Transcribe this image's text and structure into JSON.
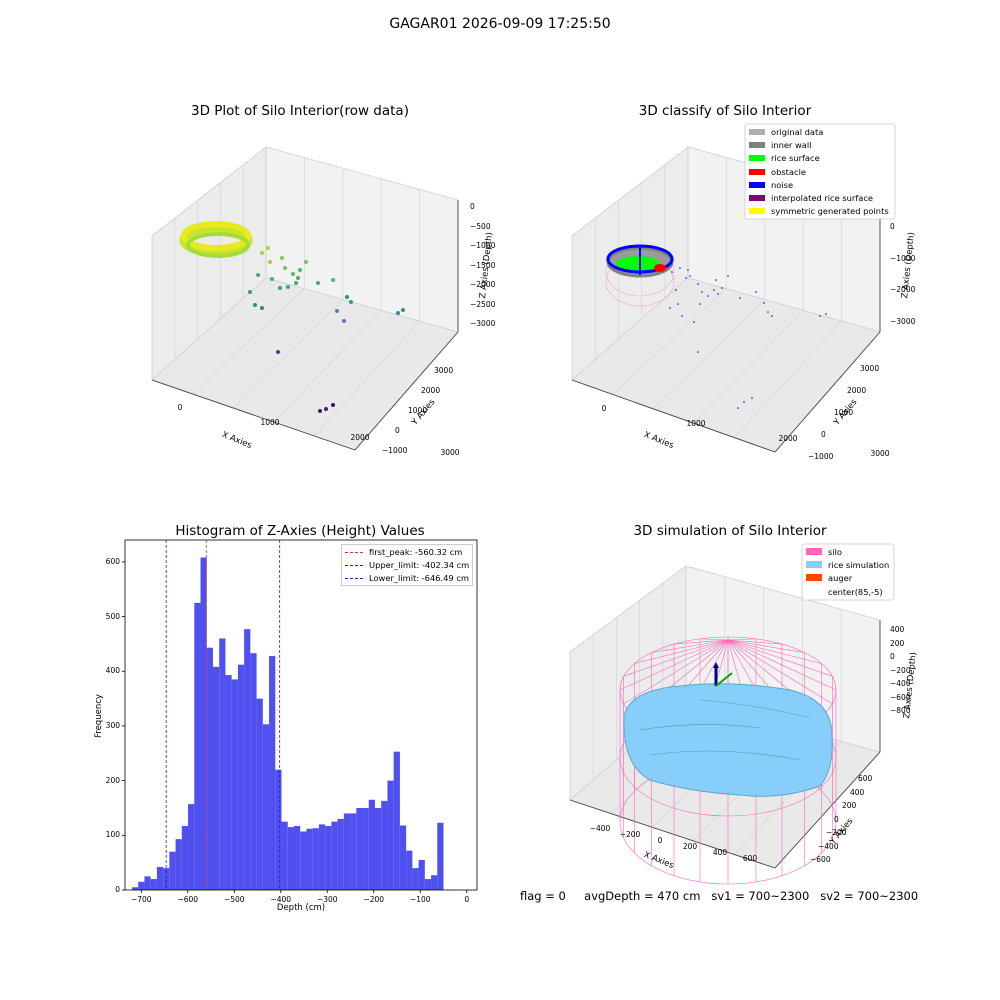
{
  "figure_title": "GAGAR01 2026-09-09 17:25:50",
  "footer": {
    "flag": "flag = 0",
    "avg_depth": "avgDepth = 470 cm",
    "sv1": "sv1 = 700~2300",
    "sv2": "sv2 = 700~2300"
  },
  "colors": {
    "hist_bar": "#5050f0",
    "first_peak": "#e03030",
    "limits": "#2020d0",
    "silo": "#ff69b4",
    "rice": "#87cefa",
    "auger": "#ff4500",
    "original": "#b0b0b0",
    "inner_wall": "#808080",
    "rice_surface": "#00ff00",
    "obstacle": "#ff0000",
    "noise": "#0000ff",
    "interp": "#800080",
    "symmetric": "#ffff00"
  },
  "chart_data": [
    {
      "type": "scatter",
      "title": "3D Plot of Silo Interior(row data)",
      "xlabel": "X Axies",
      "ylabel": "Y Axies",
      "zlabel": "Z Axies (Depth)",
      "x_ticks": [
        "0",
        "1000",
        "2000",
        "3000"
      ],
      "y_ticks": [
        "3000",
        "2000",
        "1000",
        "0",
        "−1000"
      ],
      "z_ticks": [
        "0",
        "−500",
        "−1000",
        "−1500",
        "−2000",
        "−2500",
        "−3000"
      ],
      "grid": true
    },
    {
      "type": "scatter",
      "title": "3D classify of Silo Interior",
      "xlabel": "X Axies",
      "ylabel": "Y Axies",
      "zlabel": "Z Axies (Depth)",
      "x_ticks": [
        "0",
        "1000",
        "2000",
        "3000"
      ],
      "y_ticks": [
        "3000",
        "2000",
        "1000",
        "0",
        "−1000"
      ],
      "z_ticks": [
        "0",
        "−1000",
        "−2000",
        "−3000"
      ],
      "legend": [
        "original data",
        "inner wall",
        "rice surface",
        "obstacle",
        "noise",
        "interpolated rice surface",
        "symmetric generated points"
      ],
      "legend_position": "top-right",
      "grid": true
    },
    {
      "type": "bar",
      "title": "Histogram of Z-Axies (Height) Values",
      "xlabel": "Depth (cm)",
      "ylabel": "Frequency",
      "xlim": [
        -735,
        22
      ],
      "ylim": [
        0,
        640
      ],
      "x_ticks": [
        -700,
        -600,
        -500,
        -400,
        -300,
        -200,
        -100,
        0
      ],
      "x_tick_labels": [
        "−700",
        "−600",
        "−500",
        "−400",
        "−300",
        "−200",
        "−100",
        "0"
      ],
      "y_ticks": [
        0,
        100,
        200,
        300,
        400,
        500,
        600
      ],
      "bin_start": -720,
      "bin_width": 13.4,
      "values": [
        5,
        15,
        25,
        20,
        42,
        40,
        70,
        93,
        117,
        157,
        525,
        608,
        443,
        408,
        460,
        393,
        385,
        412,
        477,
        433,
        350,
        303,
        428,
        220,
        125,
        115,
        117,
        107,
        112,
        113,
        120,
        117,
        125,
        130,
        140,
        140,
        150,
        150,
        165,
        150,
        163,
        200,
        253,
        118,
        72,
        40,
        55,
        20,
        27,
        123
      ],
      "lines": [
        {
          "label": "first_peak: -560.32 cm",
          "x": -560.32,
          "color": "#e03030"
        },
        {
          "label": "Upper_limit: -402.34 cm",
          "x": -402.34,
          "color": "#2020d0"
        },
        {
          "label": "Lower_limit: -646.49 cm",
          "x": -646.49,
          "color": "#2020d0"
        }
      ],
      "legend_position": "top-right",
      "grid": false
    },
    {
      "type": "scatter",
      "title": "3D simulation of Silo Interior",
      "xlabel": "X Axies",
      "ylabel": "Y Axies",
      "zlabel": "Z Axies (Depth)",
      "x_ticks": [
        "−400",
        "−200",
        "0",
        "200",
        "400",
        "600"
      ],
      "y_ticks": [
        "600",
        "400",
        "200",
        "0",
        "−200",
        "−400",
        "−600"
      ],
      "z_ticks": [
        "400",
        "200",
        "0",
        "−200",
        "−400",
        "−600",
        "−800"
      ],
      "legend": [
        "silo",
        "rice simulation",
        "auger",
        "center(85,-5)"
      ],
      "legend_position": "top-right",
      "grid": true
    }
  ]
}
